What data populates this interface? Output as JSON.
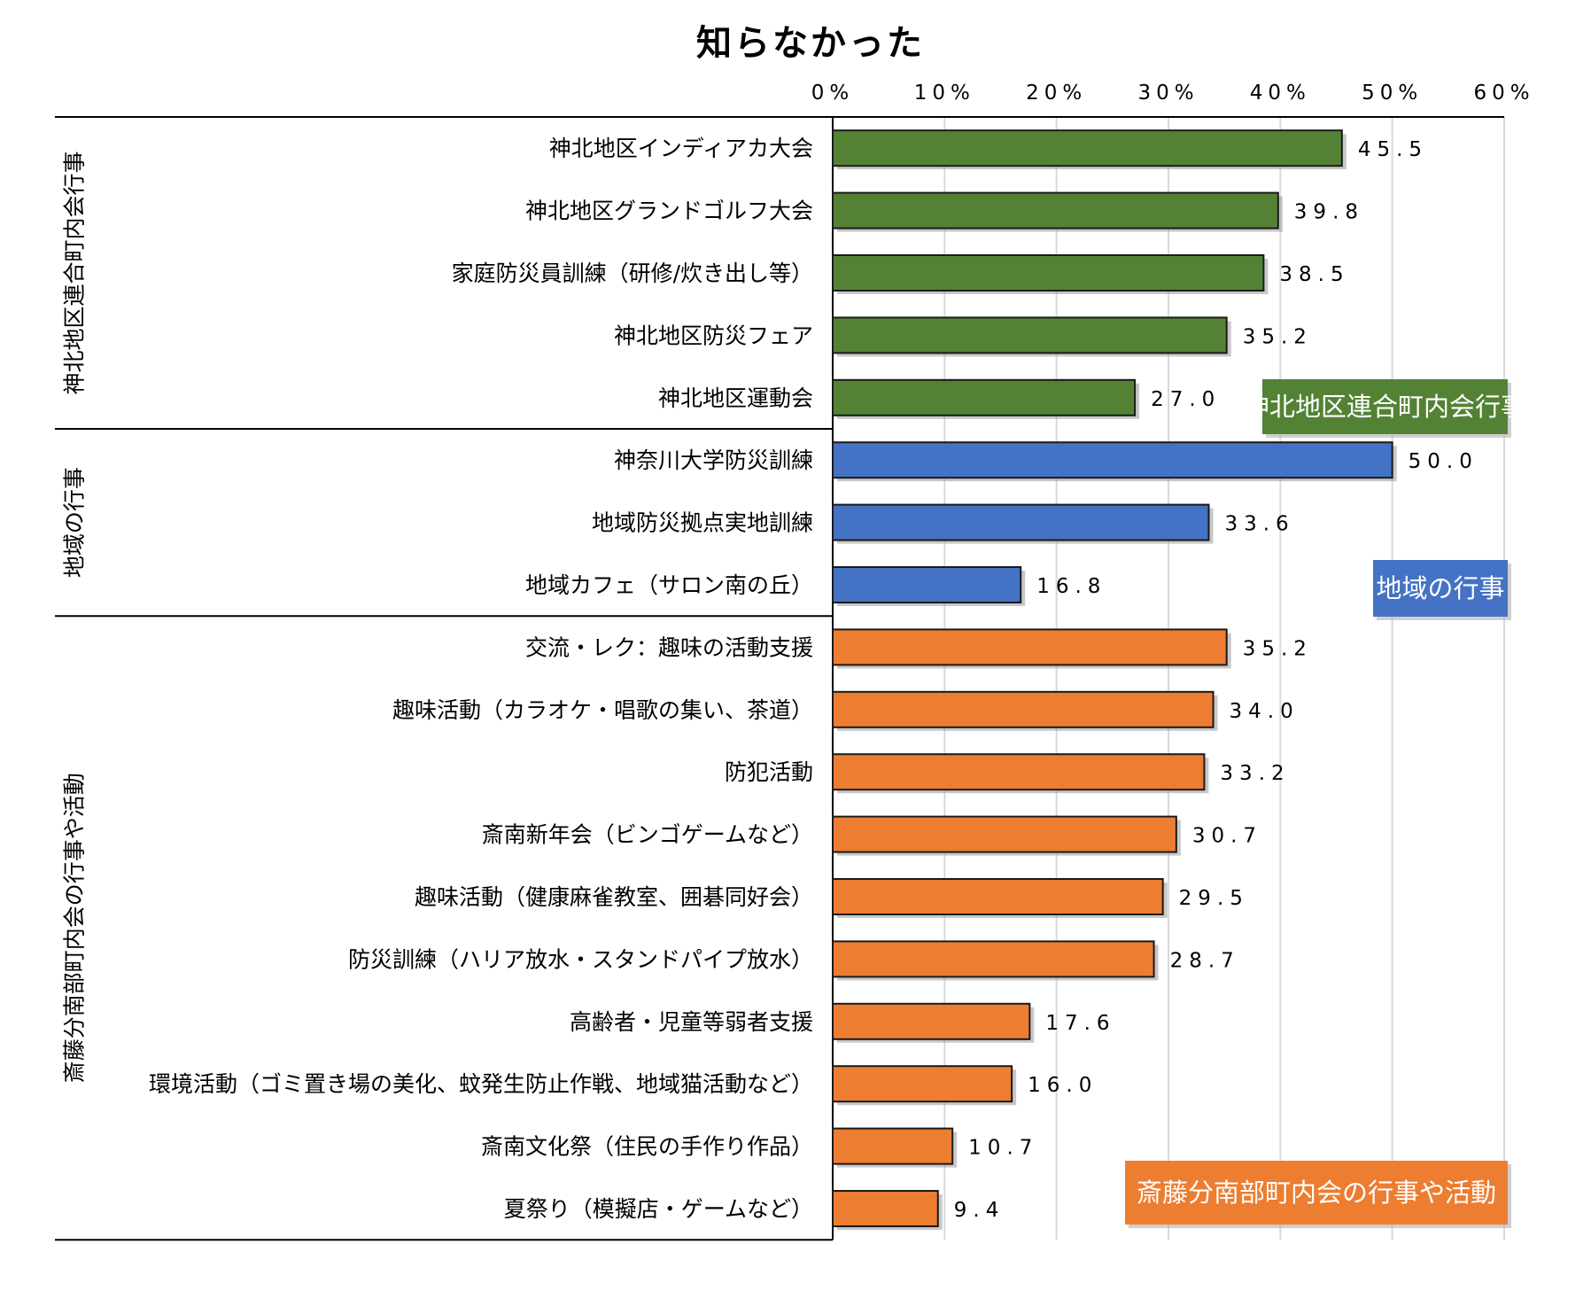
{
  "chart_data": {
    "type": "bar",
    "orientation": "horizontal",
    "title": "知らなかった",
    "xlim": [
      0,
      60
    ],
    "x_ticks": [
      "0%",
      "10%",
      "20%",
      "30%",
      "40%",
      "50%",
      "60%"
    ],
    "grid": true,
    "groups": [
      {
        "name": "神北地区連合町内会行事",
        "color": "#548235",
        "categories": [
          "神北地区インディアカ大会",
          "神北地区グランドゴルフ大会",
          "家庭防災員訓練（研修/炊き出し等）",
          "神北地区防災フェア",
          "神北地区運動会"
        ],
        "values": [
          45.5,
          39.8,
          38.5,
          35.2,
          27.0
        ],
        "labels": [
          "45.5",
          "39.8",
          "38.5",
          "35.2",
          "27.0"
        ]
      },
      {
        "name": "地域の行事",
        "color": "#4472C4",
        "categories": [
          "神奈川大学防災訓練",
          "地域防災拠点実地訓練",
          "地域カフェ（サロン南の丘）"
        ],
        "values": [
          50.0,
          33.6,
          16.8
        ],
        "labels": [
          "50.0",
          "33.6",
          "16.8"
        ]
      },
      {
        "name": "斎藤分南部町内会の行事や活動",
        "color": "#ED7D31",
        "categories": [
          "交流・レク：趣味の活動支援",
          "趣味活動（カラオケ・唱歌の集い、茶道）",
          "防犯活動",
          "斎南新年会（ビンゴゲームなど）",
          "趣味活動（健康麻雀教室、囲碁同好会）",
          "防災訓練（ハリア放水・スタンドパイプ放水）",
          "高齢者・児童等弱者支援",
          "環境活動（ゴミ置き場の美化、蚊発生防止作戦、地域猫活動など）",
          "斎南文化祭（住民の手作り作品）",
          "夏祭り（模擬店・ゲームなど）"
        ],
        "values": [
          35.2,
          34.0,
          33.2,
          30.7,
          29.5,
          28.7,
          17.6,
          16.0,
          10.7,
          9.4
        ],
        "labels": [
          "35.2",
          "34.0",
          "33.2",
          "30.7",
          "29.5",
          "28.7",
          "17.6",
          "16.0",
          "10.7",
          "9.4"
        ]
      }
    ],
    "legend": [
      {
        "text": "神北地区連合町内会行事",
        "color": "#548235"
      },
      {
        "text": "地域の行事",
        "color": "#4472C4"
      },
      {
        "text": "斎藤分南部町内会の行事や活動",
        "color": "#ED7D31"
      }
    ]
  }
}
